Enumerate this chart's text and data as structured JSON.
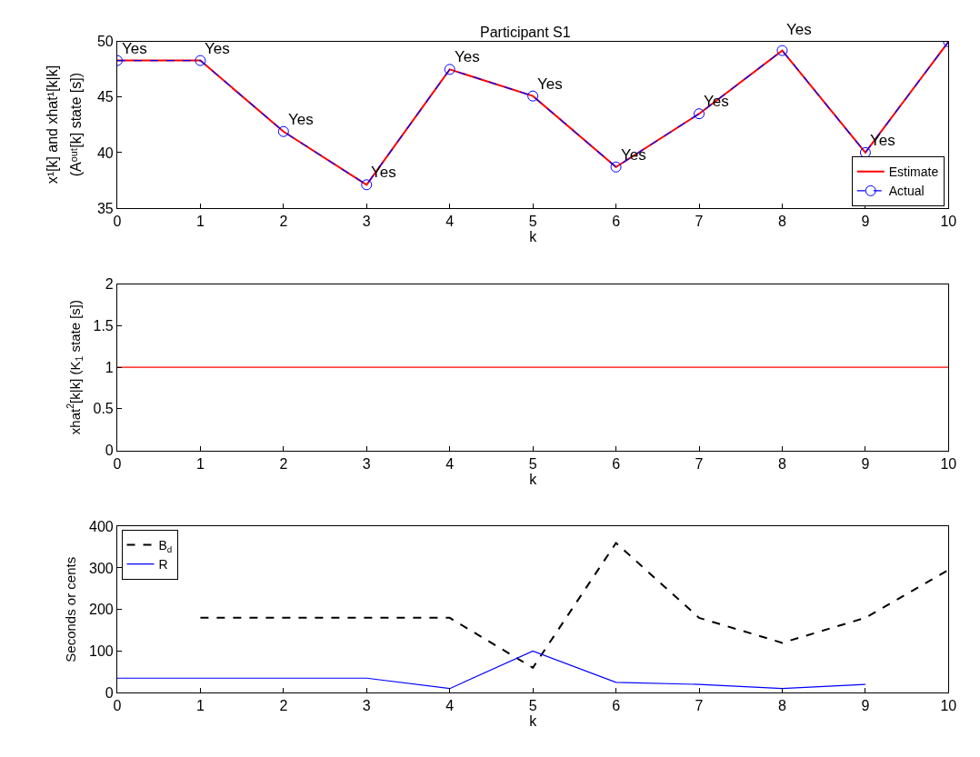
{
  "chart_data": [
    {
      "type": "line",
      "title": "Participant S1",
      "xlabel": "k",
      "ylabel": "x¹[k] and xhat¹[k|k]\n(Aᵒᵘᵗ[k] state [s])",
      "x": [
        0,
        1,
        2,
        3,
        4,
        5,
        6,
        7,
        8,
        9,
        10
      ],
      "xlim": [
        0,
        10
      ],
      "xticks": [
        0,
        1,
        2,
        3,
        4,
        5,
        6,
        7,
        8,
        9,
        10
      ],
      "ylim": [
        35,
        50
      ],
      "yticks": [
        35,
        40,
        45,
        50
      ],
      "series": [
        {
          "name": "Estimate",
          "color": "#ff0000",
          "line_style": "solid",
          "marker": "none",
          "values": [
            48.3,
            48.3,
            41.9,
            37.1,
            47.5,
            45.1,
            38.7,
            43.5,
            49.2,
            40.0,
            50.0
          ]
        },
        {
          "name": "Actual",
          "color": "#0000ff",
          "line_style": "dashed",
          "marker": "circle",
          "values": [
            48.3,
            48.3,
            41.9,
            37.1,
            47.5,
            45.1,
            38.7,
            43.5,
            49.2,
            40.0,
            50.0
          ]
        }
      ],
      "annotations": [
        {
          "text": "Yes",
          "x": 0,
          "y": 48.3
        },
        {
          "text": "Yes",
          "x": 1,
          "y": 48.3
        },
        {
          "text": "Yes",
          "x": 2,
          "y": 41.9
        },
        {
          "text": "Yes",
          "x": 3,
          "y": 37.1
        },
        {
          "text": "Yes",
          "x": 4,
          "y": 47.5
        },
        {
          "text": "Yes",
          "x": 5,
          "y": 45.1
        },
        {
          "text": "Yes",
          "x": 6,
          "y": 38.7
        },
        {
          "text": "Yes",
          "x": 7,
          "y": 43.5
        },
        {
          "text": "Yes",
          "x": 8,
          "y": 49.2
        },
        {
          "text": "Yes",
          "x": 9,
          "y": 40.0
        }
      ],
      "legend": "bottom right",
      "grid": false
    },
    {
      "type": "line",
      "xlabel": "k",
      "ylabel": "xhat$^{2}$[k|k] (K$_{1}$ state [s])",
      "x": [
        0,
        1,
        2,
        3,
        4,
        5,
        6,
        7,
        8,
        9,
        10
      ],
      "xlim": [
        0,
        10
      ],
      "xticks": [
        0,
        1,
        2,
        3,
        4,
        5,
        6,
        7,
        8,
        9,
        10
      ],
      "ylim": [
        0,
        2
      ],
      "yticks": [
        0,
        0.5,
        1,
        1.5,
        2
      ],
      "series": [
        {
          "color": "#ff0000",
          "values": [
            1,
            1,
            1,
            1,
            1,
            1,
            1,
            1,
            1,
            1,
            1
          ]
        }
      ],
      "legend": false,
      "grid": false
    },
    {
      "type": "line",
      "xlabel": "k",
      "ylabel": "Seconds or cents",
      "xlim": [
        0,
        10
      ],
      "xticks": [
        0,
        1,
        2,
        3,
        4,
        5,
        6,
        7,
        8,
        9,
        10
      ],
      "ylim": [
        0,
        400
      ],
      "yticks": [
        0,
        100,
        200,
        300,
        400
      ],
      "series": [
        {
          "name": "B$_{d}$",
          "color": "#000000",
          "line_style": "dashed",
          "x": [
            1,
            2,
            3,
            4,
            5,
            6,
            7,
            8,
            9,
            10
          ],
          "values": [
            180,
            180,
            180,
            180,
            60,
            360,
            180,
            120,
            180,
            295
          ]
        },
        {
          "name": "R",
          "color": "#0000ff",
          "line_style": "solid",
          "x": [
            0,
            1,
            2,
            3,
            4,
            5,
            6,
            7,
            8,
            9
          ],
          "values": [
            35,
            35,
            35,
            35,
            10,
            100,
            25,
            20,
            10,
            20
          ]
        }
      ],
      "legend": "top left",
      "grid": false
    }
  ]
}
